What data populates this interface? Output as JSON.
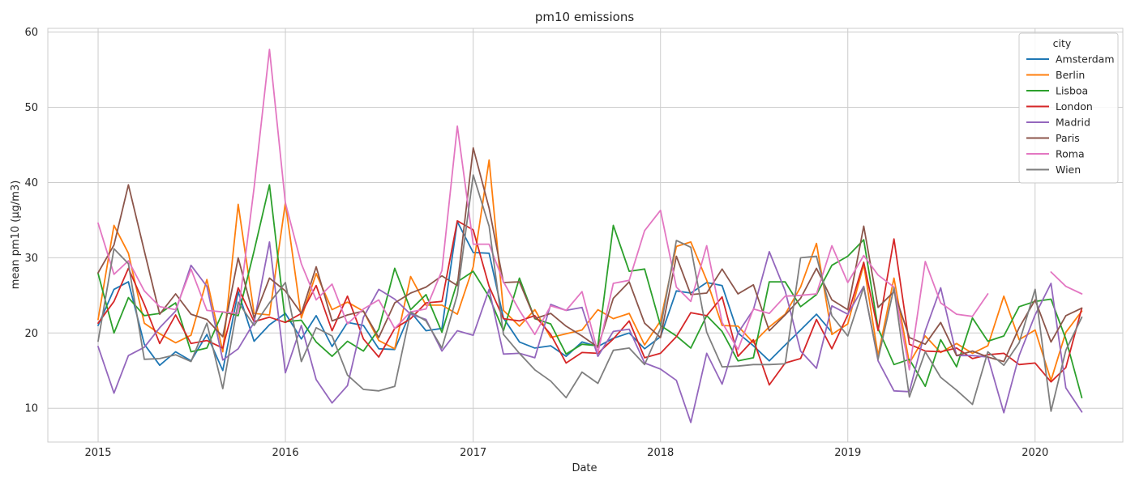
{
  "chart_data": {
    "type": "line",
    "title": "pm10 emissions",
    "xlabel": "Date",
    "ylabel": "mean pm10 (µg/m3)",
    "xlim": [
      "2014-09-25",
      "2020-06-20"
    ],
    "ylim": [
      5.5,
      60.5
    ],
    "grid": true,
    "legend_title": "city",
    "legend_position": "top-right",
    "x_ticks": [
      {
        "date": "2015-01-01",
        "label": "2015"
      },
      {
        "date": "2016-01-01",
        "label": "2016"
      },
      {
        "date": "2017-01-01",
        "label": "2017"
      },
      {
        "date": "2018-01-01",
        "label": "2018"
      },
      {
        "date": "2019-01-01",
        "label": "2019"
      },
      {
        "date": "2020-01-01",
        "label": "2020"
      }
    ],
    "y_ticks": [
      {
        "value": 10,
        "label": "10"
      },
      {
        "value": 20,
        "label": "20"
      },
      {
        "value": 30,
        "label": "30"
      },
      {
        "value": 40,
        "label": "40"
      },
      {
        "value": 50,
        "label": "50"
      },
      {
        "value": 60,
        "label": "60"
      }
    ],
    "x": [
      "2015-01-01",
      "2015-02-01",
      "2015-03-01",
      "2015-04-01",
      "2015-05-01",
      "2015-06-01",
      "2015-07-01",
      "2015-08-01",
      "2015-09-01",
      "2015-10-01",
      "2015-11-01",
      "2015-12-01",
      "2016-01-01",
      "2016-02-01",
      "2016-03-01",
      "2016-04-01",
      "2016-05-01",
      "2016-06-01",
      "2016-07-01",
      "2016-08-01",
      "2016-09-01",
      "2016-10-01",
      "2016-11-01",
      "2016-12-01",
      "2017-01-01",
      "2017-02-01",
      "2017-03-01",
      "2017-04-01",
      "2017-05-01",
      "2017-06-01",
      "2017-07-01",
      "2017-08-01",
      "2017-09-01",
      "2017-10-01",
      "2017-11-01",
      "2017-12-01",
      "2018-01-01",
      "2018-02-01",
      "2018-03-01",
      "2018-04-01",
      "2018-05-01",
      "2018-06-01",
      "2018-07-01",
      "2018-08-01",
      "2018-09-01",
      "2018-10-01",
      "2018-11-01",
      "2018-12-01",
      "2019-01-01",
      "2019-02-01",
      "2019-03-01",
      "2019-04-01",
      "2019-05-01",
      "2019-06-01",
      "2019-07-01",
      "2019-08-01",
      "2019-09-01",
      "2019-10-01",
      "2019-11-01",
      "2019-12-01",
      "2020-01-01",
      "2020-02-01",
      "2020-03-01",
      "2020-04-01"
    ],
    "series": [
      {
        "name": "Amsterdam",
        "color": "#1f77b4",
        "values": [
          21.0,
          25.8,
          26.8,
          18.5,
          15.7,
          17.5,
          16.3,
          19.8,
          15.0,
          25.5,
          18.9,
          21.1,
          22.6,
          19.2,
          22.3,
          18.2,
          21.4,
          21.0,
          17.9,
          17.8,
          22.8,
          20.3,
          20.6,
          34.8,
          30.7,
          30.6,
          22.0,
          18.8,
          18.0,
          18.3,
          16.9,
          18.8,
          18.2,
          19.3,
          20.0,
          17.9,
          19.5,
          25.6,
          25.3,
          26.7,
          26.3,
          20.0,
          18.3,
          16.3,
          18.4,
          20.4,
          22.5,
          20.1,
          null,
          null,
          null,
          null,
          null,
          null,
          null,
          null,
          null,
          null,
          null,
          null,
          null,
          null,
          null,
          null
        ]
      },
      {
        "name": "Berlin",
        "color": "#ff7f0e",
        "values": [
          21.8,
          34.3,
          30.6,
          21.3,
          19.9,
          18.7,
          19.7,
          27.1,
          17.5,
          37.1,
          22.6,
          22.4,
          37.3,
          22.0,
          27.9,
          23.1,
          24.1,
          22.9,
          19.0,
          17.9,
          27.5,
          23.7,
          23.7,
          22.5,
          28.8,
          43.0,
          23.0,
          20.9,
          23.1,
          19.4,
          19.9,
          20.4,
          23.1,
          21.9,
          22.6,
          18.4,
          21.6,
          31.5,
          32.1,
          27.0,
          21.0,
          20.9,
          18.7,
          20.8,
          22.5,
          26.1,
          31.9,
          19.8,
          21.2,
          29.1,
          17.0,
          27.3,
          16.0,
          19.6,
          17.4,
          18.6,
          17.3,
          18.3,
          24.9,
          19.1,
          20.4,
          13.7,
          20.1,
          22.9
        ]
      },
      {
        "name": "Lisboa",
        "color": "#2ca02c",
        "values": [
          27.9,
          20.0,
          24.7,
          22.3,
          22.6,
          24.0,
          17.5,
          18.0,
          22.8,
          22.3,
          30.9,
          39.7,
          21.5,
          21.7,
          18.8,
          16.9,
          18.9,
          17.6,
          20.5,
          28.6,
          23.1,
          25.1,
          20.1,
          26.8,
          28.2,
          24.8,
          20.3,
          27.3,
          21.9,
          21.2,
          17.2,
          18.5,
          18.3,
          34.3,
          28.2,
          28.5,
          21.0,
          19.6,
          18.0,
          22.3,
          20.2,
          16.3,
          16.7,
          26.8,
          26.8,
          23.5,
          25.1,
          29.0,
          30.2,
          32.4,
          20.6,
          15.8,
          16.5,
          12.9,
          19.1,
          15.5,
          22.0,
          18.9,
          19.6,
          23.5,
          24.2,
          24.5,
          19.2,
          11.4
        ]
      },
      {
        "name": "London",
        "color": "#d62728",
        "values": [
          21.3,
          24.2,
          28.6,
          23.8,
          18.6,
          22.4,
          18.6,
          19.0,
          18.0,
          26.0,
          21.5,
          22.1,
          21.4,
          22.6,
          26.3,
          20.3,
          24.9,
          19.2,
          16.8,
          20.6,
          21.9,
          24.0,
          24.2,
          34.9,
          33.7,
          26.2,
          21.9,
          21.6,
          22.3,
          19.8,
          16.0,
          17.4,
          17.3,
          19.2,
          21.6,
          16.7,
          17.3,
          19.5,
          22.7,
          22.3,
          24.8,
          16.9,
          19.1,
          13.1,
          16.0,
          16.6,
          21.8,
          17.9,
          22.4,
          29.4,
          20.3,
          32.5,
          18.5,
          17.6,
          17.5,
          18.0,
          16.6,
          17.1,
          17.3,
          15.8,
          16.0,
          13.5,
          15.4,
          23.3
        ]
      },
      {
        "name": "Madrid",
        "color": "#9467bd",
        "values": [
          18.2,
          12.0,
          17.0,
          18.1,
          20.7,
          22.9,
          29.0,
          26.2,
          16.4,
          17.9,
          21.4,
          32.1,
          14.7,
          21.0,
          13.8,
          10.7,
          13.0,
          22.1,
          25.8,
          24.5,
          22.5,
          21.8,
          17.6,
          20.3,
          19.7,
          25.8,
          17.2,
          17.3,
          16.7,
          23.8,
          23.0,
          23.4,
          16.9,
          20.2,
          20.5,
          16.0,
          15.2,
          13.7,
          8.1,
          17.3,
          13.2,
          20.0,
          23.1,
          30.8,
          25.6,
          17.6,
          15.3,
          23.6,
          22.5,
          26.2,
          16.3,
          12.3,
          12.2,
          20.3,
          26.0,
          17.0,
          17.0,
          16.8,
          9.4,
          17.0,
          22.4,
          26.6,
          12.7,
          9.5
        ]
      },
      {
        "name": "Paris",
        "color": "#8c564b",
        "values": [
          28.0,
          31.7,
          39.7,
          30.9,
          22.5,
          25.2,
          22.5,
          21.8,
          19.5,
          30.0,
          22.0,
          27.3,
          25.6,
          22.6,
          28.8,
          21.6,
          22.4,
          22.9,
          19.4,
          24.0,
          25.3,
          26.1,
          27.6,
          26.3,
          44.6,
          36.6,
          26.7,
          26.8,
          21.9,
          22.6,
          20.9,
          19.6,
          18.1,
          24.6,
          26.8,
          21.3,
          19.4,
          30.2,
          25.1,
          25.3,
          28.5,
          25.2,
          26.4,
          20.3,
          22.4,
          24.6,
          28.6,
          24.4,
          23.1,
          34.2,
          23.4,
          25.5,
          19.4,
          18.5,
          21.4,
          17.0,
          17.6,
          16.8,
          16.2,
          20.7,
          24.4,
          18.8,
          22.3,
          23.3
        ]
      },
      {
        "name": "Roma",
        "color": "#e377c2",
        "values": [
          34.6,
          27.8,
          29.6,
          25.6,
          23.5,
          23.1,
          28.5,
          23.0,
          22.8,
          22.6,
          39.3,
          57.7,
          37.3,
          29.2,
          24.4,
          26.5,
          21.2,
          23.2,
          24.4,
          20.6,
          22.8,
          23.2,
          28.3,
          47.5,
          31.8,
          31.8,
          26.8,
          23.0,
          19.8,
          23.6,
          23.0,
          25.5,
          17.4,
          26.6,
          27.0,
          33.6,
          36.3,
          26.1,
          24.2,
          31.6,
          21.4,
          17.8,
          23.2,
          22.6,
          24.9,
          25.0,
          25.2,
          31.6,
          26.7,
          30.3,
          27.7,
          26.1,
          15.1,
          29.5,
          24.0,
          22.5,
          22.2,
          25.2,
          null,
          null,
          null,
          28.1,
          26.2,
          25.2
        ]
      },
      {
        "name": "Wien",
        "color": "#7f7f7f",
        "values": [
          18.9,
          31.2,
          29.2,
          16.5,
          16.6,
          17.1,
          16.2,
          21.3,
          12.6,
          24.1,
          21.0,
          24.0,
          26.7,
          16.2,
          20.7,
          19.6,
          14.4,
          12.5,
          12.3,
          12.9,
          22.8,
          21.6,
          18.0,
          25.1,
          41.0,
          34.2,
          19.8,
          17.3,
          15.1,
          13.6,
          11.4,
          14.8,
          13.3,
          17.7,
          18.0,
          15.8,
          20.6,
          32.3,
          31.4,
          20.1,
          15.5,
          15.6,
          15.8,
          15.8,
          15.9,
          30.0,
          30.2,
          22.3,
          19.6,
          26.1,
          16.5,
          26.0,
          11.5,
          17.5,
          14.1,
          12.4,
          10.5,
          17.5,
          15.7,
          18.7,
          25.8,
          9.6,
          17.7,
          22.1
        ]
      }
    ]
  }
}
